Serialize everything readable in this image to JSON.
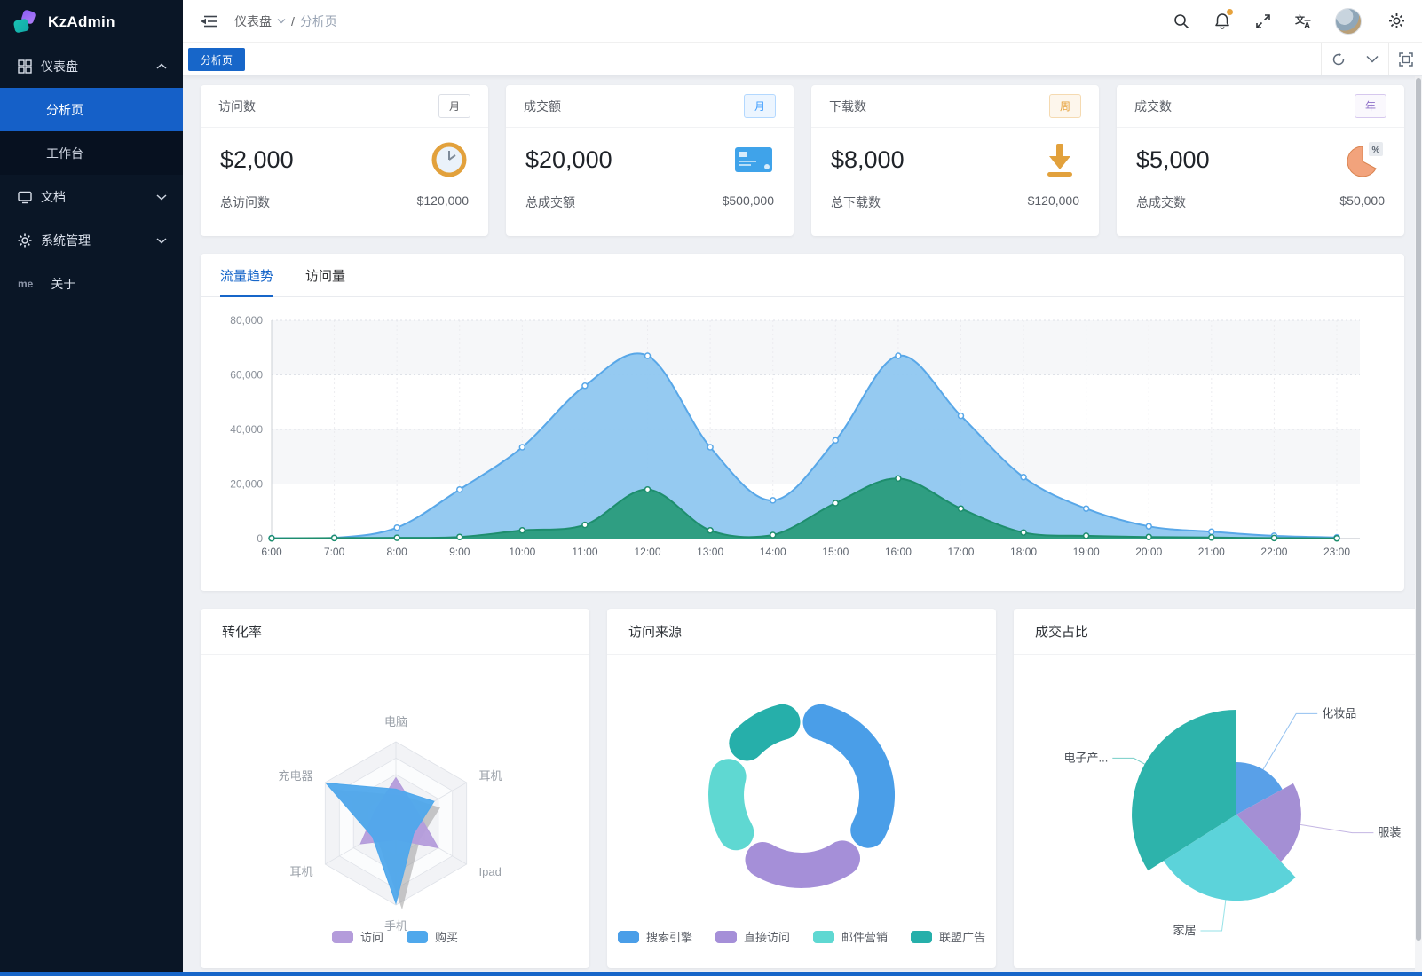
{
  "app": {
    "logo_text": "KzAdmin"
  },
  "colors": {
    "accent": "#1766c9",
    "sidebar_active": "#1560c8",
    "badge_primary": "#409eff",
    "badge_warning": "#e6a23c",
    "badge_purple": "#8e6fc8",
    "notification_dot": "#e6a23c"
  },
  "sidebar": {
    "logo_text": "KzAdmin",
    "dashboard": {
      "label": "仪表盘"
    },
    "analysis": {
      "label": "分析页"
    },
    "workbench": {
      "label": "工作台"
    },
    "docs": {
      "label": "文档"
    },
    "system": {
      "label": "系统管理"
    },
    "about": {
      "label": "关于",
      "prefix": "me"
    }
  },
  "header": {
    "breadcrumb": {
      "level1": "仪表盘",
      "separator": "/",
      "level2": "分析页"
    }
  },
  "tabbar": {
    "active_tab": "分析页"
  },
  "stat_cards": [
    {
      "title": "访问数",
      "period": "月",
      "badge_style": "default",
      "value": "$2,000",
      "icon": "clock-icon",
      "footer_label": "总访问数",
      "footer_value": "$120,000"
    },
    {
      "title": "成交额",
      "period": "月",
      "badge_style": "primary",
      "value": "$20,000",
      "icon": "credit-card-icon",
      "footer_label": "总成交额",
      "footer_value": "$500,000"
    },
    {
      "title": "下载数",
      "period": "周",
      "badge_style": "warning",
      "value": "$8,000",
      "icon": "download-icon",
      "footer_label": "总下载数",
      "footer_value": "$120,000"
    },
    {
      "title": "成交数",
      "period": "年",
      "badge_style": "purple",
      "value": "$5,000",
      "icon": "pie-icon",
      "footer_label": "总成交数",
      "footer_value": "$50,000"
    }
  ],
  "main_chart": {
    "tabs": [
      "流量趋势",
      "访问量"
    ],
    "active_tab": "流量趋势"
  },
  "panels": {
    "radar_title": "转化率",
    "donut_title": "访问来源",
    "rose_title": "成交占比"
  },
  "chart_data": [
    {
      "id": "trend",
      "type": "area",
      "title": "流量趋势",
      "x": [
        "6:00",
        "7:00",
        "8:00",
        "9:00",
        "10:00",
        "11:00",
        "12:00",
        "13:00",
        "14:00",
        "15:00",
        "16:00",
        "17:00",
        "18:00",
        "19:00",
        "20:00",
        "21:00",
        "22:00",
        "23:00"
      ],
      "ylim": [
        0,
        80000
      ],
      "y_ticks": [
        0,
        20000,
        40000,
        60000,
        80000
      ],
      "grid": true,
      "legend_position": "none",
      "series": [
        {
          "color": "#58a7e8",
          "fill": "#8fc7f0",
          "values": [
            150,
            250,
            4000,
            18000,
            33500,
            56000,
            67000,
            33500,
            14000,
            36000,
            67000,
            45000,
            22500,
            11000,
            4500,
            2500,
            1000,
            400
          ]
        },
        {
          "color": "#1e8e6e",
          "fill": "#2f9e82",
          "values": [
            100,
            200,
            300,
            600,
            3000,
            5000,
            18000,
            3000,
            1300,
            13000,
            22000,
            11000,
            2200,
            1000,
            600,
            400,
            200,
            100
          ]
        }
      ]
    },
    {
      "id": "radar",
      "type": "radar",
      "title": "转化率",
      "indicators": [
        "电脑",
        "耳机",
        "Ipad",
        "手机",
        "耳机",
        "充电器"
      ],
      "max": 100,
      "legend_position": "bottom",
      "series": [
        {
          "name": "访问",
          "color": "#b49cdb",
          "values": [
            56,
            30,
            60,
            20,
            50,
            30
          ]
        },
        {
          "name": "购买",
          "color": "#4fa8ec",
          "values": [
            42,
            54,
            25,
            98,
            33,
            99
          ]
        }
      ]
    },
    {
      "id": "donut",
      "type": "pie",
      "subtype": "donut",
      "title": "访问来源",
      "legend_position": "bottom",
      "slices": [
        {
          "name": "搜索引擎",
          "value": 1048,
          "color": "#4a9ee8"
        },
        {
          "name": "直接访问",
          "value": 735,
          "color": "#a58fd8"
        },
        {
          "name": "邮件营销",
          "value": 580,
          "color": "#5fd8d2"
        },
        {
          "name": "联盟广告",
          "value": 484,
          "color": "#26afaa"
        }
      ]
    },
    {
      "id": "rose",
      "type": "pie",
      "subtype": "rose",
      "title": "成交占比",
      "legend_position": "none",
      "slices": [
        {
          "name": "化妆品",
          "value": 17,
          "color": "#59a0e8"
        },
        {
          "name": "服装",
          "value": 21,
          "color": "#a48fd4"
        },
        {
          "name": "家居",
          "value": 28,
          "color": "#5cd3da"
        },
        {
          "name": "电子产...",
          "value": 34,
          "color": "#2db3ab"
        }
      ]
    }
  ]
}
